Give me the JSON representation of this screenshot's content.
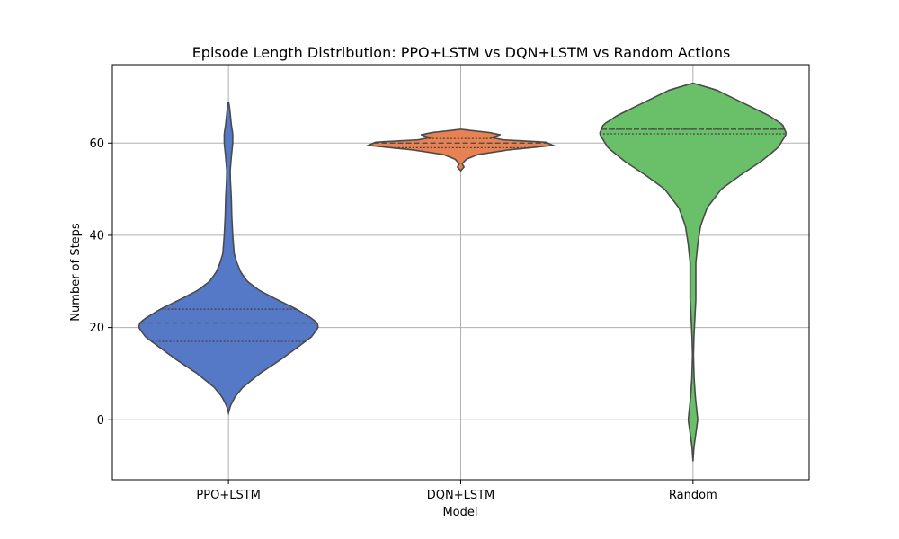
{
  "chart_data": {
    "type": "violin",
    "title": "Episode Length Distribution: PPO+LSTM vs DQN+LSTM vs Random Actions",
    "xlabel": "Model",
    "ylabel": "Number of Steps",
    "ylim": [
      -13,
      77
    ],
    "y_ticks": [
      0,
      20,
      40,
      60
    ],
    "grid": true,
    "categories": [
      "PPO+LSTM",
      "DQN+LSTM",
      "Random"
    ],
    "series": [
      {
        "category": "PPO+LSTM",
        "color": "#5579c6",
        "range": [
          1.5,
          69
        ],
        "quartiles": [
          17,
          21,
          24
        ],
        "density": [
          [
            1.5,
            0.0
          ],
          [
            3,
            0.02
          ],
          [
            5,
            0.07
          ],
          [
            7,
            0.15
          ],
          [
            10,
            0.33
          ],
          [
            13,
            0.55
          ],
          [
            16,
            0.75
          ],
          [
            18,
            0.88
          ],
          [
            20,
            0.95
          ],
          [
            21,
            0.94
          ],
          [
            22,
            0.88
          ],
          [
            24,
            0.72
          ],
          [
            26,
            0.52
          ],
          [
            28,
            0.33
          ],
          [
            30,
            0.2
          ],
          [
            32,
            0.13
          ],
          [
            34,
            0.09
          ],
          [
            36,
            0.06
          ],
          [
            40,
            0.045
          ],
          [
            44,
            0.035
          ],
          [
            48,
            0.03
          ],
          [
            52,
            0.02
          ],
          [
            54,
            0.018
          ],
          [
            57,
            0.03
          ],
          [
            60,
            0.045
          ],
          [
            62,
            0.045
          ],
          [
            64,
            0.03
          ],
          [
            66,
            0.02
          ],
          [
            68,
            0.01
          ],
          [
            69,
            0.0
          ]
        ]
      },
      {
        "category": "DQN+LSTM",
        "color": "#e88252",
        "range": [
          54,
          63
        ],
        "quartiles": [
          59,
          60,
          61
        ],
        "density": [
          [
            54,
            0.0
          ],
          [
            54.8,
            0.035
          ],
          [
            55.5,
            0.015
          ],
          [
            56.5,
            0.06
          ],
          [
            57.5,
            0.18
          ],
          [
            58.5,
            0.5
          ],
          [
            59.5,
            0.98
          ],
          [
            60.2,
            0.9
          ],
          [
            60.7,
            0.45
          ],
          [
            61.2,
            0.33
          ],
          [
            61.8,
            0.42
          ],
          [
            62.3,
            0.3
          ],
          [
            62.7,
            0.12
          ],
          [
            63,
            0.0
          ]
        ]
      },
      {
        "category": "Random",
        "color": "#6abf69",
        "range": [
          -9,
          73
        ],
        "quartiles": [
          62,
          63,
          63
        ],
        "density": [
          [
            -9,
            0.0
          ],
          [
            -6,
            0.01
          ],
          [
            -3,
            0.03
          ],
          [
            0,
            0.05
          ],
          [
            2,
            0.04
          ],
          [
            5,
            0.025
          ],
          [
            9,
            0.012
          ],
          [
            14,
            0.005
          ],
          [
            18,
            0.01
          ],
          [
            22,
            0.02
          ],
          [
            26,
            0.03
          ],
          [
            30,
            0.03
          ],
          [
            34,
            0.03
          ],
          [
            38,
            0.05
          ],
          [
            42,
            0.08
          ],
          [
            46,
            0.15
          ],
          [
            50,
            0.3
          ],
          [
            53,
            0.5
          ],
          [
            56,
            0.72
          ],
          [
            59,
            0.9
          ],
          [
            62,
            0.99
          ],
          [
            64,
            0.95
          ],
          [
            66,
            0.8
          ],
          [
            68,
            0.6
          ],
          [
            70,
            0.4
          ],
          [
            71.5,
            0.25
          ],
          [
            73,
            0.0
          ]
        ]
      }
    ]
  }
}
